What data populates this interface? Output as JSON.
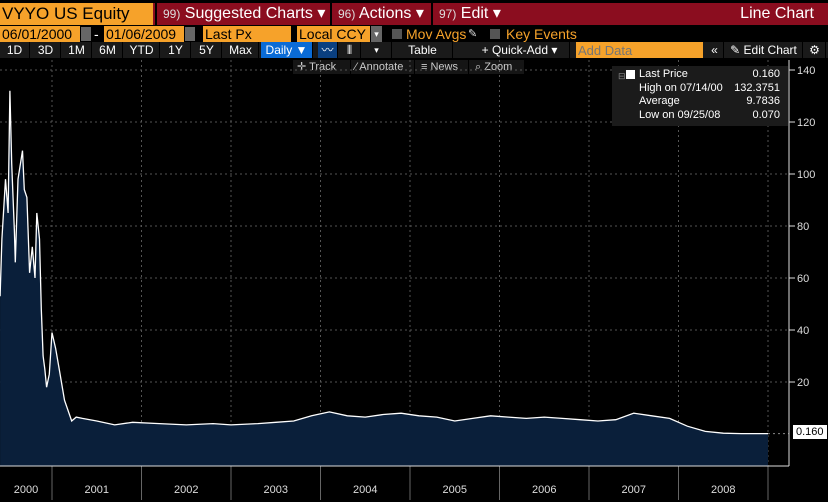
{
  "header": {
    "ticker": "VYYO US Equity",
    "menus": [
      {
        "num": "99)",
        "label": "Suggested Charts"
      },
      {
        "num": "96)",
        "label": "Actions"
      },
      {
        "num": "97)",
        "label": "Edit"
      }
    ],
    "title": "Line Chart"
  },
  "controls": {
    "start_date": "06/01/2000",
    "end_date": "01/06/2009",
    "field": "Last Px",
    "currency": "Local CCY",
    "mov_avgs": "Mov Avgs",
    "key_events": "Key Events"
  },
  "ranges": [
    "1D",
    "3D",
    "1M",
    "6M",
    "YTD",
    "1Y",
    "5Y",
    "Max"
  ],
  "frequency": "Daily ▼",
  "toolbar": {
    "table": "Table",
    "quick_add": "+ Quick-Add",
    "add_data_placeholder": "Add Data",
    "edit_chart": "Edit Chart"
  },
  "tools": [
    "Track",
    "Annotate",
    "News",
    "Zoom"
  ],
  "legend": [
    {
      "label": "Last Price",
      "value": "0.160"
    },
    {
      "label": "High on 07/14/00",
      "value": "132.3751"
    },
    {
      "label": "Average",
      "value": "9.7836"
    },
    {
      "label": "Low on 09/25/08",
      "value": "0.070"
    }
  ],
  "chart_data": {
    "type": "area",
    "x_unit": "year",
    "ylim": [
      -6,
      142
    ],
    "yticks": [
      "140",
      "120",
      "100",
      "80",
      "60",
      "40",
      "20"
    ],
    "ytick_values": [
      140,
      120,
      100,
      80,
      60,
      40,
      20
    ],
    "xticks": [
      "2000",
      "2001",
      "2002",
      "2003",
      "2004",
      "2005",
      "2006",
      "2007",
      "2008"
    ],
    "last_label": "0.160",
    "fill": "#0a1f3a",
    "x": [
      2000.42,
      2000.44,
      2000.48,
      2000.51,
      2000.53,
      2000.55,
      2000.58,
      2000.59,
      2000.62,
      2000.67,
      2000.69,
      2000.72,
      2000.75,
      2000.78,
      2000.81,
      2000.83,
      2000.86,
      2000.88,
      2000.9,
      2000.92,
      2000.94,
      2000.97,
      2001.0,
      2001.04,
      2001.08,
      2001.14,
      2001.22,
      2001.27,
      2001.34,
      2001.5,
      2001.7,
      2001.9,
      2002.2,
      2002.5,
      2002.8,
      2003.0,
      2003.3,
      2003.5,
      2003.7,
      2003.9,
      2004.1,
      2004.3,
      2004.5,
      2004.7,
      2004.9,
      2005.1,
      2005.3,
      2005.5,
      2005.7,
      2005.9,
      2006.1,
      2006.3,
      2006.5,
      2006.7,
      2006.9,
      2007.1,
      2007.3,
      2007.5,
      2007.7,
      2007.9,
      2008.1,
      2008.3,
      2008.5,
      2008.7,
      2009.0
    ],
    "y": [
      53,
      75,
      98,
      85,
      132,
      104,
      78,
      66,
      98,
      109,
      94,
      91,
      62,
      72,
      60,
      85,
      75,
      48,
      30,
      25,
      18,
      23,
      39,
      33,
      25,
      13,
      5,
      6.5,
      6,
      5,
      3.5,
      4.5,
      4,
      3.5,
      4,
      3.5,
      4,
      4.5,
      5,
      7,
      8.5,
      7,
      6.5,
      7.5,
      8,
      7,
      6.5,
      5,
      6,
      7,
      6.5,
      6,
      6.5,
      6,
      5.5,
      5,
      5.5,
      8,
      7,
      6,
      3,
      1,
      0.3,
      0.16,
      0.16
    ]
  }
}
